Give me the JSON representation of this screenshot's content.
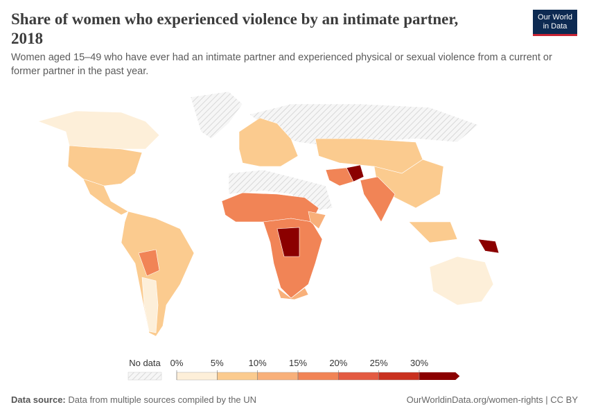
{
  "header": {
    "title": "Share of women who experienced violence by an intimate partner, 2018",
    "subtitle": "Women aged 15–49 who have ever had an intimate partner and experienced physical or sexual violence from a current or former partner in the past year.",
    "logo": [
      "Our World",
      "in Data"
    ]
  },
  "legend": {
    "no_data": "No data",
    "ticks": [
      {
        "value": 0,
        "label": "0%"
      },
      {
        "value": 5,
        "label": "5%"
      },
      {
        "value": 10,
        "label": "10%"
      },
      {
        "value": 15,
        "label": "15%"
      },
      {
        "value": 20,
        "label": "20%"
      },
      {
        "value": 25,
        "label": "25%"
      },
      {
        "value": 30,
        "label": "30%"
      }
    ],
    "colors": [
      "#fdefd9",
      "#fbcb8f",
      "#f8b07a",
      "#f18456",
      "#e35b42",
      "#c9311f",
      "#8b0000"
    ]
  },
  "footer": {
    "source_label": "Data source:",
    "source": "Data from multiple sources compiled by the UN",
    "credit": "OurWorldinData.org/women-rights | CC BY"
  }
}
